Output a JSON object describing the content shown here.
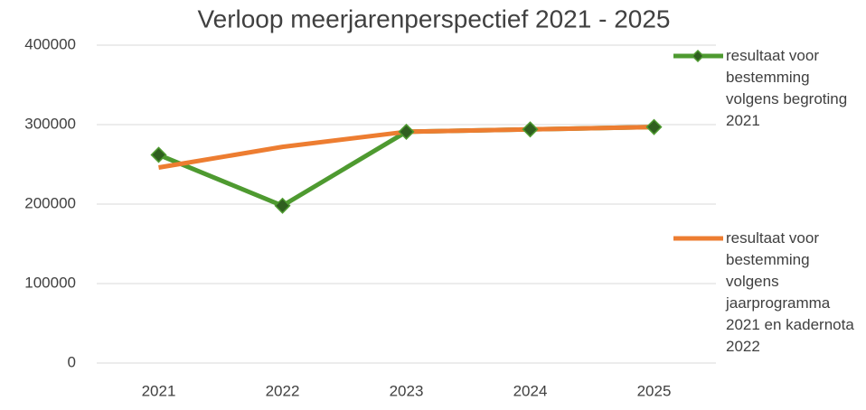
{
  "chart_data": {
    "type": "line",
    "title": "Verloop meerjarenperspectief 2021 - 2025",
    "categories": [
      "2021",
      "2022",
      "2023",
      "2024",
      "2025"
    ],
    "series": [
      {
        "name": "resultaat voor bestemming volgens begroting 2021",
        "color": "#4e9a30",
        "marker_color": "#2f5f1f",
        "values": [
          262000,
          198000,
          291000,
          294000,
          297000
        ]
      },
      {
        "name": "resultaat voor bestemming volgens jaarprogramma 2021 en kadernota 2022",
        "color": "#ed7d31",
        "values": [
          246000,
          272000,
          291000,
          294000,
          297000
        ]
      }
    ],
    "ylim": [
      0,
      400000
    ],
    "yticks": [
      0,
      100000,
      200000,
      300000,
      400000
    ],
    "grid": true,
    "legend": "right"
  }
}
